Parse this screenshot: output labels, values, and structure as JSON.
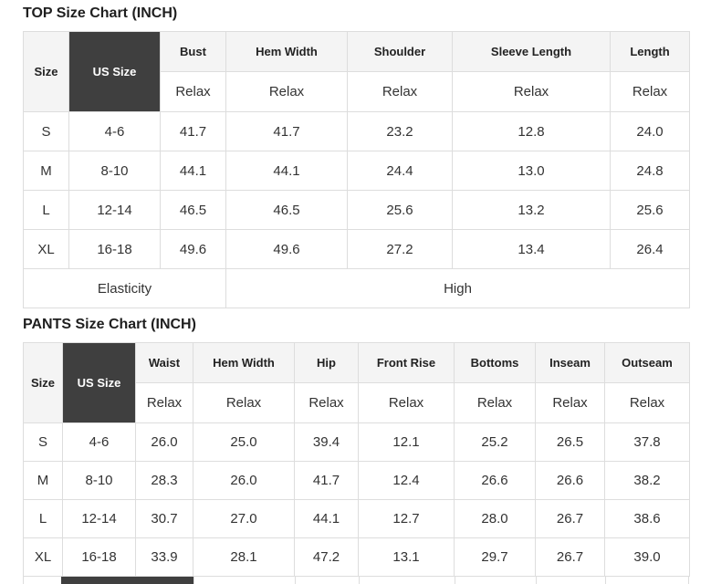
{
  "colors": {
    "page_bg": "#ffffff",
    "title_text": "#1f1f1f",
    "header_bg": "#f4f4f4",
    "header_text": "#222222",
    "dark_cell_bg": "#3f3f3f",
    "dark_cell_text": "#ffffff",
    "cell_text": "#333333",
    "border": "#dddddd"
  },
  "chart_data": [
    {
      "type": "table",
      "title": "TOP Size Chart (INCH)",
      "corner_header": "Size",
      "us_size_header": "US Size",
      "fit_label": "Relax",
      "measure_columns": [
        "Bust",
        "Hem Width",
        "Shoulder",
        "Sleeve Length",
        "Length"
      ],
      "rows": [
        {
          "size": "S",
          "us_size": "4-6",
          "values": [
            "41.7",
            "41.7",
            "23.2",
            "12.8",
            "24.0"
          ]
        },
        {
          "size": "M",
          "us_size": "8-10",
          "values": [
            "44.1",
            "44.1",
            "24.4",
            "13.0",
            "24.8"
          ]
        },
        {
          "size": "L",
          "us_size": "12-14",
          "values": [
            "46.5",
            "46.5",
            "25.6",
            "13.2",
            "25.6"
          ]
        },
        {
          "size": "XL",
          "us_size": "16-18",
          "values": [
            "49.6",
            "49.6",
            "27.2",
            "13.4",
            "26.4"
          ]
        }
      ],
      "footer": {
        "label": "Elasticity",
        "label_colspan": 3,
        "value": "High",
        "value_colspan": 4
      }
    },
    {
      "type": "table",
      "title": "PANTS Size Chart (INCH)",
      "corner_header": "Size",
      "us_size_header": "US Size",
      "fit_label": "Relax",
      "measure_columns": [
        "Waist",
        "Hem Width",
        "Hip",
        "Front Rise",
        "Bottoms",
        "Inseam",
        "Outseam"
      ],
      "rows": [
        {
          "size": "S",
          "us_size": "4-6",
          "values": [
            "26.0",
            "25.0",
            "39.4",
            "12.1",
            "25.2",
            "26.5",
            "37.8"
          ]
        },
        {
          "size": "M",
          "us_size": "8-10",
          "values": [
            "28.3",
            "26.0",
            "41.7",
            "12.4",
            "26.6",
            "26.6",
            "38.2"
          ]
        },
        {
          "size": "L",
          "us_size": "12-14",
          "values": [
            "30.7",
            "27.0",
            "44.1",
            "12.7",
            "28.0",
            "26.7",
            "38.6"
          ]
        },
        {
          "size": "XL",
          "us_size": "16-18",
          "values": [
            "33.9",
            "28.1",
            "47.2",
            "13.1",
            "29.7",
            "26.7",
            "39.0"
          ]
        }
      ],
      "footer": null
    }
  ],
  "bottom_cutoff_row": {
    "visible": true
  }
}
